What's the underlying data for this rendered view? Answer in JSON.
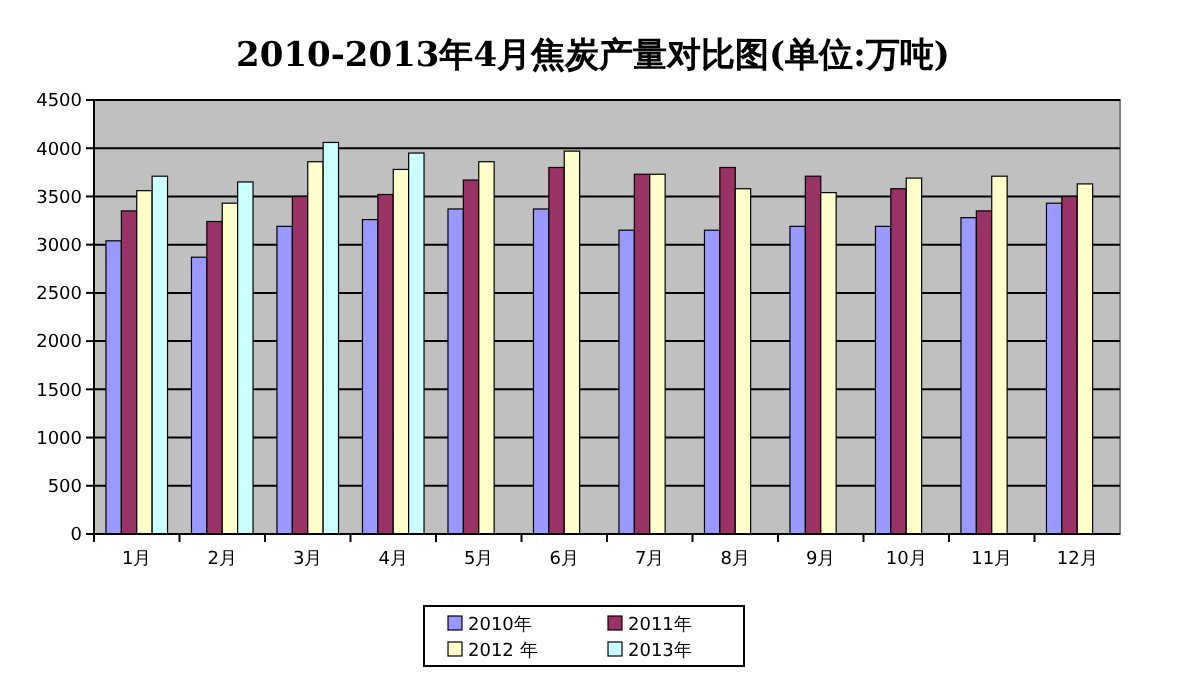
{
  "chart_data": {
    "type": "bar",
    "title": "2010-2013年4月焦炭产量对比图(单位:万吨)",
    "categories": [
      "1月",
      "2月",
      "3月",
      "4月",
      "5月",
      "6月",
      "7月",
      "8月",
      "9月",
      "10月",
      "11月",
      "12月"
    ],
    "series": [
      {
        "name": "2010年",
        "color": "#9999ff",
        "values": [
          3040,
          2870,
          3190,
          3260,
          3370,
          3370,
          3150,
          3150,
          3190,
          3190,
          3280,
          3430
        ]
      },
      {
        "name": "2011年",
        "color": "#993366",
        "values": [
          3350,
          3240,
          3500,
          3520,
          3670,
          3800,
          3730,
          3800,
          3710,
          3580,
          3350,
          3500
        ]
      },
      {
        "name": "2012 年",
        "color": "#ffffcc",
        "values": [
          3560,
          3430,
          3860,
          3780,
          3860,
          3970,
          3730,
          3580,
          3540,
          3690,
          3710,
          3630
        ]
      },
      {
        "name": "2013年",
        "color": "#ccffff",
        "values": [
          3710,
          3650,
          4060,
          3950,
          null,
          null,
          null,
          null,
          null,
          null,
          null,
          null
        ]
      }
    ],
    "ylim": [
      0,
      4500
    ],
    "yticks": [
      0,
      500,
      1000,
      1500,
      2000,
      2500,
      3000,
      3500,
      4000,
      4500
    ],
    "grid": "y",
    "legend": "bottom"
  }
}
